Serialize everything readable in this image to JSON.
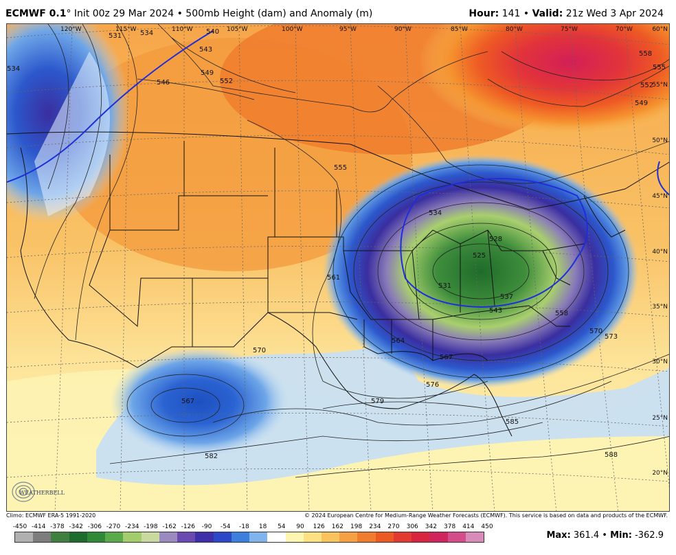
{
  "header": {
    "model": "ECMWF 0.1",
    "degree": "°",
    "init": "Init 00z 29 Mar 2024",
    "bullet": "•",
    "product": "500mb Height (dam) and Anomaly (m)",
    "hour_label": "Hour:",
    "hour_value": "141",
    "valid_label": "Valid:",
    "valid_value": "21z Wed 3 Apr 2024"
  },
  "axes": {
    "longitudes": [
      "120°W",
      "115°W",
      "110°W",
      "105°W",
      "100°W",
      "95°W",
      "90°W",
      "85°W",
      "80°W",
      "75°W",
      "70°W"
    ],
    "latitudes": [
      "60°N",
      "55°N",
      "50°N",
      "45°N",
      "40°N",
      "35°N",
      "30°N",
      "25°N",
      "20°N"
    ]
  },
  "contour_labels": [
    "531",
    "534",
    "540",
    "543",
    "546",
    "549",
    "552",
    "555",
    "558",
    "561",
    "564",
    "567",
    "570",
    "573",
    "576",
    "579",
    "582",
    "585",
    "588",
    "525",
    "528",
    "537",
    "543",
    "556"
  ],
  "credits": {
    "climo": "Climo: ECMWF ERA-5 1991-2020",
    "copyright": "© 2024 European Centre for Medium-Range Weather Forecasts (ECMWF). This service is based on data and products of the ECMWF."
  },
  "scale": {
    "ticks": [
      "-450",
      "-414",
      "-378",
      "-342",
      "-306",
      "-270",
      "-234",
      "-198",
      "-162",
      "-126",
      "-90",
      "-54",
      "-18",
      "18",
      "54",
      "90",
      "126",
      "162",
      "198",
      "234",
      "270",
      "306",
      "342",
      "378",
      "414",
      "450"
    ],
    "colors": [
      "#b0b0b0",
      "#7d7d7d",
      "#3f7f3f",
      "#1d6b2d",
      "#2f8a38",
      "#5aaa4a",
      "#a3cc6a",
      "#c9d9a0",
      "#9a8ac0",
      "#6a4ab0",
      "#3e2fa8",
      "#2a48c8",
      "#3d7fdc",
      "#7fb4ec",
      "#ffffff",
      "#fdf6b0",
      "#fbe182",
      "#f8c25c",
      "#f5a042",
      "#f07c2e",
      "#ea5a22",
      "#e23a30",
      "#d8243f",
      "#d0245c",
      "#d44c8a",
      "#d88ab8"
    ]
  },
  "stats": {
    "max_label": "Max:",
    "max_value": "361.4",
    "sep": "•",
    "min_label": "Min:",
    "min_value": "-362.9"
  },
  "logo": {
    "text": "WEATHERBELL"
  }
}
